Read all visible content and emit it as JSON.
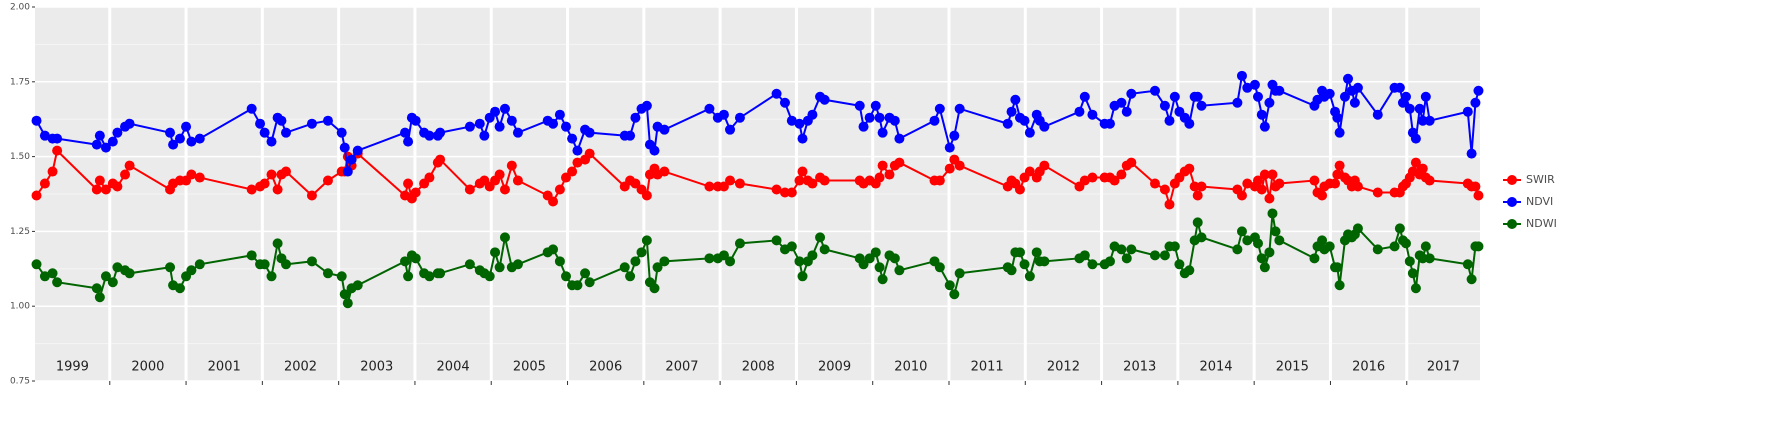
{
  "chart_data": {
    "type": "line",
    "year_labels": [
      "1999",
      "2000",
      "2001",
      "2002",
      "2003",
      "2004",
      "2005",
      "2006",
      "2007",
      "2008",
      "2009",
      "2010",
      "2011",
      "2012",
      "2013",
      "2014",
      "2015",
      "2016",
      "2017"
    ],
    "x": [
      1999.04,
      1999.15,
      1999.25,
      1999.31,
      1999.83,
      1999.87,
      1999.95,
      2000.04,
      2000.1,
      2000.2,
      2000.26,
      2000.79,
      2000.83,
      2000.92,
      2001.0,
      2001.07,
      2001.18,
      2001.86,
      2001.97,
      2002.03,
      2002.12,
      2002.2,
      2002.25,
      2002.31,
      2002.65,
      2002.86,
      2003.04,
      2003.08,
      2003.12,
      2003.17,
      2003.25,
      2003.87,
      2003.91,
      2003.96,
      2004.01,
      2004.12,
      2004.19,
      2004.3,
      2004.33,
      2004.72,
      2004.85,
      2004.91,
      2004.98,
      2005.05,
      2005.11,
      2005.18,
      2005.27,
      2005.35,
      2005.74,
      2005.81,
      2005.9,
      2005.98,
      2006.06,
      2006.13,
      2006.23,
      2006.29,
      2006.75,
      2006.82,
      2006.89,
      2006.97,
      2007.04,
      2007.08,
      2007.14,
      2007.18,
      2007.27,
      2007.86,
      2007.97,
      2008.05,
      2008.13,
      2008.26,
      2008.74,
      2008.85,
      2008.94,
      2009.04,
      2009.08,
      2009.15,
      2009.21,
      2009.31,
      2009.37,
      2009.83,
      2009.88,
      2009.96,
      2010.04,
      2010.09,
      2010.13,
      2010.22,
      2010.29,
      2010.35,
      2010.81,
      2010.88,
      2011.01,
      2011.07,
      2011.14,
      2011.77,
      2011.82,
      2011.87,
      2011.93,
      2011.99,
      2012.06,
      2012.15,
      2012.19,
      2012.25,
      2012.71,
      2012.78,
      2012.88,
      2013.04,
      2013.11,
      2013.17,
      2013.26,
      2013.33,
      2013.39,
      2013.7,
      2013.83,
      2013.89,
      2013.96,
      2014.02,
      2014.09,
      2014.15,
      2014.22,
      2014.26,
      2014.31,
      2014.78,
      2014.84,
      2014.91,
      2015.01,
      2015.05,
      2015.1,
      2015.14,
      2015.2,
      2015.24,
      2015.28,
      2015.33,
      2015.79,
      2015.83,
      2015.89,
      2015.92,
      2015.99,
      2016.06,
      2016.09,
      2016.12,
      2016.19,
      2016.23,
      2016.28,
      2016.32,
      2016.36,
      2016.62,
      2016.84,
      2016.91,
      2016.95,
      2016.99,
      2017.04,
      2017.08,
      2017.12,
      2017.17,
      2017.21,
      2017.25,
      2017.3,
      2017.8,
      2017.85,
      2017.9,
      2017.94
    ],
    "series": [
      {
        "name": "SWIR",
        "color": "#ff0000",
        "values": [
          1.37,
          1.41,
          1.45,
          1.52,
          1.39,
          1.42,
          1.39,
          1.41,
          1.4,
          1.44,
          1.47,
          1.39,
          1.41,
          1.42,
          1.42,
          1.44,
          1.43,
          1.39,
          1.4,
          1.41,
          1.44,
          1.39,
          1.44,
          1.45,
          1.37,
          1.42,
          1.45,
          1.45,
          1.5,
          1.47,
          1.51,
          1.37,
          1.41,
          1.36,
          1.38,
          1.41,
          1.43,
          1.48,
          1.49,
          1.39,
          1.41,
          1.42,
          1.4,
          1.42,
          1.44,
          1.39,
          1.47,
          1.42,
          1.37,
          1.35,
          1.39,
          1.43,
          1.45,
          1.48,
          1.49,
          1.51,
          1.4,
          1.42,
          1.41,
          1.39,
          1.37,
          1.44,
          1.46,
          1.44,
          1.45,
          1.4,
          1.4,
          1.4,
          1.42,
          1.41,
          1.39,
          1.38,
          1.38,
          1.42,
          1.45,
          1.42,
          1.41,
          1.43,
          1.42,
          1.42,
          1.41,
          1.42,
          1.41,
          1.43,
          1.47,
          1.44,
          1.47,
          1.48,
          1.42,
          1.42,
          1.46,
          1.49,
          1.47,
          1.4,
          1.42,
          1.41,
          1.39,
          1.43,
          1.45,
          1.43,
          1.45,
          1.47,
          1.4,
          1.42,
          1.43,
          1.43,
          1.43,
          1.42,
          1.44,
          1.47,
          1.48,
          1.41,
          1.39,
          1.34,
          1.41,
          1.43,
          1.45,
          1.46,
          1.4,
          1.37,
          1.4,
          1.39,
          1.37,
          1.41,
          1.4,
          1.42,
          1.39,
          1.44,
          1.36,
          1.44,
          1.4,
          1.41,
          1.42,
          1.38,
          1.37,
          1.4,
          1.41,
          1.41,
          1.44,
          1.47,
          1.43,
          1.42,
          1.4,
          1.42,
          1.4,
          1.38,
          1.38,
          1.38,
          1.4,
          1.41,
          1.43,
          1.45,
          1.48,
          1.44,
          1.46,
          1.43,
          1.42,
          1.41,
          1.4,
          1.4,
          1.37
        ]
      },
      {
        "name": "NDVI",
        "color": "#0000ff",
        "values": [
          1.62,
          1.57,
          1.56,
          1.56,
          1.54,
          1.57,
          1.53,
          1.55,
          1.58,
          1.6,
          1.61,
          1.58,
          1.54,
          1.56,
          1.6,
          1.55,
          1.56,
          1.66,
          1.61,
          1.58,
          1.55,
          1.63,
          1.62,
          1.58,
          1.61,
          1.62,
          1.58,
          1.53,
          1.45,
          1.49,
          1.52,
          1.58,
          1.55,
          1.63,
          1.62,
          1.58,
          1.57,
          1.57,
          1.58,
          1.6,
          1.61,
          1.57,
          1.63,
          1.65,
          1.6,
          1.66,
          1.62,
          1.58,
          1.62,
          1.61,
          1.64,
          1.6,
          1.56,
          1.52,
          1.59,
          1.58,
          1.57,
          1.57,
          1.63,
          1.66,
          1.67,
          1.54,
          1.52,
          1.6,
          1.59,
          1.66,
          1.63,
          1.64,
          1.59,
          1.63,
          1.71,
          1.68,
          1.62,
          1.61,
          1.56,
          1.62,
          1.64,
          1.7,
          1.69,
          1.67,
          1.6,
          1.63,
          1.67,
          1.63,
          1.58,
          1.63,
          1.62,
          1.56,
          1.62,
          1.66,
          1.53,
          1.57,
          1.66,
          1.61,
          1.65,
          1.69,
          1.63,
          1.62,
          1.58,
          1.64,
          1.62,
          1.6,
          1.65,
          1.7,
          1.64,
          1.61,
          1.61,
          1.67,
          1.68,
          1.65,
          1.71,
          1.72,
          1.67,
          1.62,
          1.7,
          1.65,
          1.63,
          1.61,
          1.7,
          1.7,
          1.67,
          1.68,
          1.77,
          1.73,
          1.74,
          1.7,
          1.64,
          1.6,
          1.68,
          1.74,
          1.72,
          1.72,
          1.67,
          1.69,
          1.72,
          1.7,
          1.71,
          1.65,
          1.63,
          1.58,
          1.7,
          1.76,
          1.72,
          1.68,
          1.73,
          1.64,
          1.73,
          1.73,
          1.68,
          1.7,
          1.66,
          1.58,
          1.56,
          1.66,
          1.62,
          1.7,
          1.62,
          1.65,
          1.51,
          1.68,
          1.72
        ]
      },
      {
        "name": "NDWI",
        "color": "#006400",
        "values": [
          1.14,
          1.1,
          1.11,
          1.08,
          1.06,
          1.03,
          1.1,
          1.08,
          1.13,
          1.12,
          1.11,
          1.13,
          1.07,
          1.06,
          1.1,
          1.12,
          1.14,
          1.17,
          1.14,
          1.14,
          1.1,
          1.21,
          1.16,
          1.14,
          1.15,
          1.11,
          1.1,
          1.04,
          1.01,
          1.06,
          1.07,
          1.15,
          1.1,
          1.17,
          1.16,
          1.11,
          1.1,
          1.11,
          1.11,
          1.14,
          1.12,
          1.11,
          1.1,
          1.18,
          1.13,
          1.23,
          1.13,
          1.14,
          1.18,
          1.19,
          1.15,
          1.1,
          1.07,
          1.07,
          1.11,
          1.08,
          1.13,
          1.1,
          1.15,
          1.18,
          1.22,
          1.08,
          1.06,
          1.13,
          1.15,
          1.16,
          1.16,
          1.17,
          1.15,
          1.21,
          1.22,
          1.19,
          1.2,
          1.15,
          1.1,
          1.15,
          1.17,
          1.23,
          1.19,
          1.16,
          1.14,
          1.16,
          1.18,
          1.13,
          1.09,
          1.17,
          1.16,
          1.12,
          1.15,
          1.13,
          1.07,
          1.04,
          1.11,
          1.13,
          1.12,
          1.18,
          1.18,
          1.14,
          1.1,
          1.18,
          1.15,
          1.15,
          1.16,
          1.17,
          1.14,
          1.14,
          1.15,
          1.2,
          1.19,
          1.16,
          1.19,
          1.17,
          1.17,
          1.2,
          1.2,
          1.14,
          1.11,
          1.12,
          1.22,
          1.28,
          1.23,
          1.19,
          1.25,
          1.22,
          1.23,
          1.21,
          1.16,
          1.13,
          1.18,
          1.31,
          1.25,
          1.22,
          1.16,
          1.2,
          1.22,
          1.19,
          1.2,
          1.13,
          1.13,
          1.07,
          1.22,
          1.24,
          1.23,
          1.24,
          1.26,
          1.19,
          1.2,
          1.26,
          1.22,
          1.21,
          1.15,
          1.11,
          1.06,
          1.17,
          1.16,
          1.2,
          1.16,
          1.14,
          1.09,
          1.2,
          1.2
        ]
      }
    ],
    "xlim": [
      1999.02,
      2017.96
    ],
    "xticks": [
      2000,
      2001,
      2002,
      2003,
      2004,
      2005,
      2006,
      2007,
      2008,
      2009,
      2010,
      2011,
      2012,
      2013,
      2014,
      2015,
      2016,
      2017
    ],
    "ylim": [
      0.75,
      2.0
    ],
    "yticks": [
      {
        "value": 0.75,
        "label": "0.75"
      },
      {
        "value": 1.0,
        "label": "1.00"
      },
      {
        "value": 1.25,
        "label": "1.25"
      },
      {
        "value": 1.5,
        "label": "1.50"
      },
      {
        "value": 1.75,
        "label": "1.75"
      },
      {
        "value": 2.0,
        "label": "2.00"
      }
    ],
    "grid": true,
    "legend": "right"
  }
}
